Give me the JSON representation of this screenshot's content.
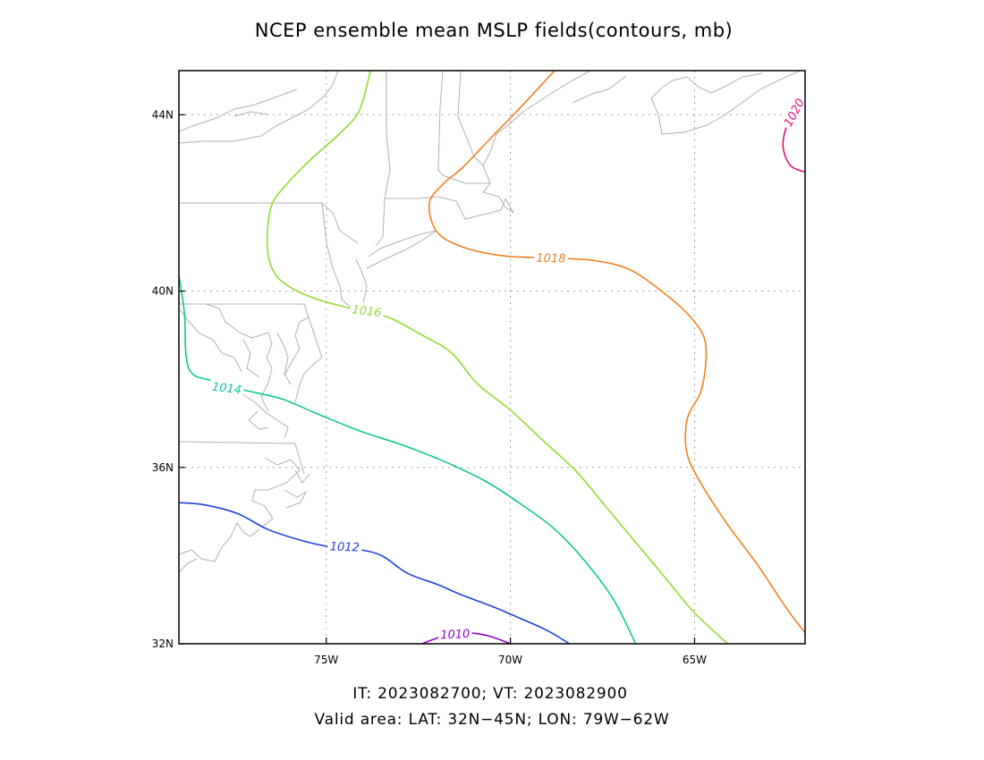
{
  "title": "NCEP ensemble mean MSLP fields(contours, mb)",
  "footer": {
    "line1": "IT: 2023082700; VT: 2023082900",
    "line2": "Valid area: LAT: 32N−45N; LON: 79W−62W"
  },
  "map": {
    "lon_range": [
      -79,
      -62
    ],
    "lat_range": [
      32,
      45
    ],
    "lon_ticks": [
      {
        "lon": -75,
        "label": "75W"
      },
      {
        "lon": -70,
        "label": "70W"
      },
      {
        "lon": -65,
        "label": "65W"
      }
    ],
    "lat_ticks": [
      {
        "lat": 32,
        "label": "32N"
      },
      {
        "lat": 36,
        "label": "36N"
      },
      {
        "lat": 40,
        "label": "40N"
      },
      {
        "lat": 44,
        "label": "44N"
      }
    ],
    "grid": "dotted",
    "contours": [
      {
        "value": "1010",
        "color": "#9400c8",
        "points": [
          [
            -72.4,
            32.0
          ],
          [
            -71.8,
            32.18
          ],
          [
            -71.2,
            32.25
          ],
          [
            -70.6,
            32.18
          ],
          [
            -70.0,
            32.0
          ]
        ],
        "label": {
          "lon": -71.5,
          "lat": 32.22,
          "angle": -3
        }
      },
      {
        "value": "1012",
        "color": "#2040e0",
        "points": [
          [
            -79.0,
            35.2
          ],
          [
            -78.3,
            35.15
          ],
          [
            -77.4,
            34.95
          ],
          [
            -76.6,
            34.6
          ],
          [
            -75.7,
            34.35
          ],
          [
            -74.9,
            34.2
          ],
          [
            -74.2,
            34.15
          ],
          [
            -73.5,
            34.0
          ],
          [
            -72.8,
            33.6
          ],
          [
            -72.0,
            33.35
          ],
          [
            -71.3,
            33.1
          ],
          [
            -70.5,
            32.85
          ],
          [
            -69.8,
            32.6
          ],
          [
            -69.0,
            32.3
          ],
          [
            -68.4,
            32.0
          ]
        ],
        "label": {
          "lon": -74.5,
          "lat": 34.2,
          "angle": 2
        }
      },
      {
        "value": "1014",
        "color": "#10c890",
        "points": [
          [
            -79.0,
            40.35
          ],
          [
            -78.85,
            39.5
          ],
          [
            -78.8,
            38.5
          ],
          [
            -78.6,
            38.1
          ],
          [
            -78.0,
            37.95
          ],
          [
            -77.2,
            37.75
          ],
          [
            -76.2,
            37.55
          ],
          [
            -75.2,
            37.2
          ],
          [
            -74.0,
            36.8
          ],
          [
            -72.9,
            36.5
          ],
          [
            -71.7,
            36.1
          ],
          [
            -70.6,
            35.65
          ],
          [
            -69.6,
            35.1
          ],
          [
            -68.8,
            34.6
          ],
          [
            -68.0,
            33.9
          ],
          [
            -67.2,
            33.0
          ],
          [
            -66.6,
            32.0
          ]
        ],
        "label": {
          "lon": -77.7,
          "lat": 37.8,
          "angle": 7
        }
      },
      {
        "value": "1016",
        "color": "#90dc30",
        "points": [
          [
            -73.8,
            45.0
          ],
          [
            -74.1,
            44.1
          ],
          [
            -74.6,
            43.6
          ],
          [
            -75.4,
            43.0
          ],
          [
            -76.1,
            42.4
          ],
          [
            -76.5,
            41.9
          ],
          [
            -76.6,
            41.0
          ],
          [
            -76.4,
            40.4
          ],
          [
            -75.9,
            40.05
          ],
          [
            -75.2,
            39.8
          ],
          [
            -74.3,
            39.6
          ],
          [
            -73.3,
            39.4
          ],
          [
            -72.4,
            39.0
          ],
          [
            -71.6,
            38.6
          ],
          [
            -70.9,
            37.9
          ],
          [
            -70.0,
            37.3
          ],
          [
            -69.1,
            36.6
          ],
          [
            -68.2,
            35.9
          ],
          [
            -67.4,
            35.1
          ],
          [
            -66.6,
            34.3
          ],
          [
            -65.8,
            33.5
          ],
          [
            -65.0,
            32.7
          ],
          [
            -64.1,
            32.0
          ]
        ],
        "label": {
          "lon": -73.9,
          "lat": 39.55,
          "angle": 7
        }
      },
      {
        "value": "1018",
        "color": "#f08020",
        "points": [
          [
            -68.8,
            45.0
          ],
          [
            -69.8,
            44.1
          ],
          [
            -70.5,
            43.5
          ],
          [
            -71.3,
            42.8
          ],
          [
            -71.8,
            42.45
          ],
          [
            -72.2,
            42.0
          ],
          [
            -72.0,
            41.35
          ],
          [
            -71.3,
            41.0
          ],
          [
            -70.2,
            40.8
          ],
          [
            -69.0,
            40.75
          ],
          [
            -67.8,
            40.7
          ],
          [
            -66.8,
            40.5
          ],
          [
            -65.9,
            40.0
          ],
          [
            -65.1,
            39.4
          ],
          [
            -64.7,
            38.8
          ],
          [
            -64.8,
            37.8
          ],
          [
            -65.2,
            37.1
          ],
          [
            -65.2,
            36.3
          ],
          [
            -64.8,
            35.6
          ],
          [
            -64.1,
            34.7
          ],
          [
            -63.3,
            33.8
          ],
          [
            -62.5,
            32.8
          ],
          [
            -62.0,
            32.25
          ]
        ],
        "label": {
          "lon": -68.9,
          "lat": 40.75,
          "angle": 1
        }
      },
      {
        "value": "1020",
        "color": "#e01080",
        "points": [
          [
            -62.0,
            42.7
          ],
          [
            -62.4,
            42.85
          ],
          [
            -62.6,
            43.3
          ],
          [
            -62.45,
            43.85
          ],
          [
            -62.1,
            44.25
          ]
        ],
        "label": {
          "lon": -62.3,
          "lat": 44.05,
          "angle": -62
        }
      }
    ]
  }
}
